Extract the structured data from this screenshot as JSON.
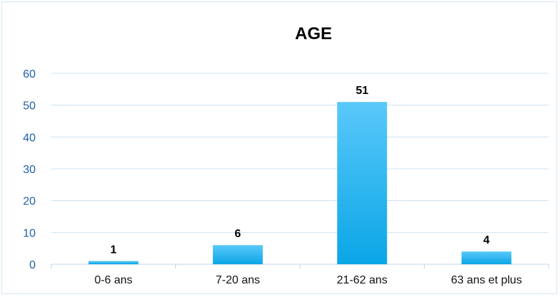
{
  "chart_data": {
    "type": "bar",
    "title": "AGE",
    "categories": [
      "0-6 ans",
      "7-20 ans",
      "21-62 ans",
      "63 ans et plus"
    ],
    "values": [
      1,
      6,
      51,
      4
    ],
    "data_labels": [
      "1",
      "6",
      "51",
      "4"
    ],
    "ylim": [
      0,
      60
    ],
    "yticks": [
      0,
      10,
      20,
      30,
      40,
      50,
      60
    ],
    "ytick_labels": [
      "0",
      "10",
      "20",
      "30",
      "40",
      "50",
      "60"
    ],
    "xlabel": "",
    "ylabel": "",
    "grid": true,
    "legend": "none",
    "colors": {
      "bar_top": "#5ac8fa",
      "bar_bottom": "#0aa6e6",
      "grid": "#cfe3f3",
      "axis": "#bcd7ee",
      "ytick_text": "#1f5fa8",
      "frame": "#d7e6f2"
    }
  }
}
